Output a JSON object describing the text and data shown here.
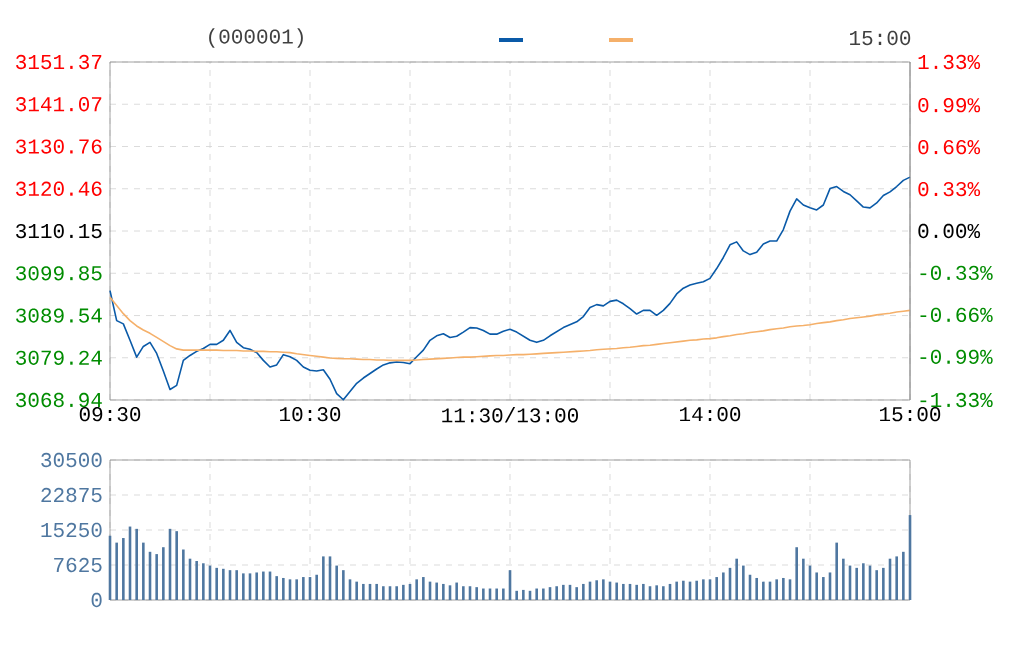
{
  "chart_data": [
    {
      "type": "line",
      "annotations": [
        "(000001)",
        "15:00"
      ],
      "categories": [
        "09:30",
        null,
        null,
        null,
        null,
        null,
        null,
        null,
        null,
        null,
        null,
        null,
        null,
        null,
        null,
        null,
        null,
        null,
        null,
        null,
        null,
        null,
        null,
        null,
        null,
        null,
        null,
        null,
        null,
        null,
        "10:30",
        null,
        null,
        null,
        null,
        null,
        null,
        null,
        null,
        null,
        null,
        null,
        null,
        null,
        null,
        null,
        null,
        null,
        null,
        null,
        null,
        null,
        null,
        null,
        null,
        null,
        null,
        null,
        null,
        null,
        "11:30/13:00",
        null,
        null,
        null,
        null,
        null,
        null,
        null,
        null,
        null,
        null,
        null,
        null,
        null,
        null,
        null,
        null,
        null,
        null,
        null,
        null,
        null,
        null,
        null,
        null,
        null,
        null,
        null,
        null,
        null,
        "14:00",
        null,
        null,
        null,
        null,
        null,
        null,
        null,
        null,
        null,
        null,
        null,
        null,
        null,
        null,
        null,
        null,
        null,
        null,
        null,
        null,
        null,
        null,
        null,
        null,
        null,
        null,
        null,
        null,
        null,
        "15:00"
      ],
      "ylim": [
        3068.94,
        3151.37
      ],
      "yticks": [
        3068.94,
        3079.24,
        3089.54,
        3099.85,
        3110.15,
        3120.46,
        3130.76,
        3141.07,
        3151.37
      ],
      "y2lim": [
        -1.33,
        1.33
      ],
      "y2ticks": [
        {
          "value": -1.33,
          "label": "-1.33%"
        },
        {
          "value": -0.99,
          "label": "-0.99%"
        },
        {
          "value": -0.66,
          "label": "-0.66%"
        },
        {
          "value": -0.33,
          "label": "-0.33%"
        },
        {
          "value": 0,
          "label": "0.00%"
        },
        {
          "value": 0.33,
          "label": "0.33%"
        },
        {
          "value": 0.66,
          "label": "0.66%"
        },
        {
          "value": 0.99,
          "label": "0.99%"
        },
        {
          "value": 1.33,
          "label": "1.33%"
        }
      ],
      "grid": true,
      "series": [
        {
          "color": "#0a5aa8",
          "values": [
            3095.6,
            3088.3,
            3087.5,
            3083.5,
            3079.4,
            3082.0,
            3083.0,
            3080.3,
            3076.0,
            3071.5,
            3072.5,
            3078.6,
            3079.8,
            3080.8,
            3081.5,
            3082.5,
            3082.5,
            3083.5,
            3085.9,
            3083.0,
            3081.7,
            3081.3,
            3080.5,
            3078.6,
            3077.0,
            3077.5,
            3080.0,
            3079.5,
            3078.6,
            3077.0,
            3076.2,
            3076.0,
            3076.3,
            3074.0,
            3070.5,
            3069.0,
            3071.0,
            3073.0,
            3074.3,
            3075.4,
            3076.5,
            3077.5,
            3078.0,
            3078.2,
            3078.1,
            3077.8,
            3079.5,
            3081.1,
            3083.5,
            3084.6,
            3085.1,
            3084.2,
            3084.5,
            3085.5,
            3086.6,
            3086.5,
            3085.9,
            3085.0,
            3085.0,
            3085.7,
            3086.2,
            3085.5,
            3084.5,
            3083.5,
            3083.0,
            3083.5,
            3084.6,
            3085.6,
            3086.6,
            3087.3,
            3088.0,
            3089.3,
            3091.5,
            3092.2,
            3091.9,
            3093.0,
            3093.3,
            3092.4,
            3091.2,
            3089.9,
            3090.8,
            3090.8,
            3089.6,
            3090.8,
            3092.5,
            3094.8,
            3096.2,
            3097.0,
            3097.4,
            3097.8,
            3098.6,
            3101.0,
            3103.7,
            3106.8,
            3107.5,
            3105.3,
            3104.4,
            3105.0,
            3107.0,
            3107.7,
            3107.7,
            3110.5,
            3115.0,
            3118.0,
            3116.5,
            3115.8,
            3115.3,
            3116.5,
            3120.5,
            3121.0,
            3119.8,
            3119.0,
            3117.5,
            3116.0,
            3115.8,
            3117.0,
            3118.8,
            3119.7,
            3121.0,
            3122.5,
            3123.3
          ]
        },
        {
          "color": "#f5b06a",
          "values": [
            3094.0,
            3092.0,
            3090.0,
            3088.3,
            3087.0,
            3086.0,
            3085.2,
            3084.2,
            3083.2,
            3082.2,
            3081.4,
            3081.1,
            3081.1,
            3081.1,
            3081.1,
            3081.1,
            3081.1,
            3081.0,
            3081.0,
            3081.0,
            3080.9,
            3080.9,
            3080.8,
            3080.8,
            3080.7,
            3080.7,
            3080.6,
            3080.5,
            3080.2,
            3080.0,
            3079.8,
            3079.6,
            3079.4,
            3079.2,
            3079.1,
            3079.0,
            3079.0,
            3078.9,
            3078.8,
            3078.8,
            3078.7,
            3078.7,
            3078.6,
            3078.6,
            3078.6,
            3078.6,
            3078.7,
            3078.8,
            3078.9,
            3079.0,
            3079.1,
            3079.2,
            3079.3,
            3079.4,
            3079.4,
            3079.5,
            3079.6,
            3079.7,
            3079.8,
            3079.8,
            3079.9,
            3080.0,
            3080.0,
            3080.1,
            3080.2,
            3080.3,
            3080.4,
            3080.5,
            3080.6,
            3080.7,
            3080.8,
            3080.9,
            3081.0,
            3081.2,
            3081.3,
            3081.4,
            3081.5,
            3081.7,
            3081.8,
            3082.0,
            3082.2,
            3082.3,
            3082.5,
            3082.7,
            3082.9,
            3083.1,
            3083.3,
            3083.5,
            3083.6,
            3083.8,
            3083.9,
            3084.1,
            3084.4,
            3084.6,
            3084.9,
            3085.1,
            3085.4,
            3085.6,
            3085.8,
            3086.1,
            3086.3,
            3086.5,
            3086.8,
            3087.0,
            3087.1,
            3087.3,
            3087.6,
            3087.8,
            3088.0,
            3088.3,
            3088.5,
            3088.8,
            3089.0,
            3089.2,
            3089.4,
            3089.7,
            3089.9,
            3090.1,
            3090.4,
            3090.6,
            3090.8
          ]
        }
      ]
    },
    {
      "type": "bar",
      "tick_labels": "y",
      "grid": true,
      "color": "#4f77a0",
      "categories": [
        null,
        null,
        null,
        null,
        null,
        null,
        null,
        null,
        null,
        null,
        null,
        null,
        null,
        null,
        null,
        null,
        null,
        null,
        null,
        null,
        null,
        null,
        null,
        null,
        null,
        null,
        null,
        null,
        null,
        null,
        null,
        null,
        null,
        null,
        null,
        null,
        null,
        null,
        null,
        null,
        null,
        null,
        null,
        null,
        null,
        null,
        null,
        null,
        null,
        null,
        null,
        null,
        null,
        null,
        null,
        null,
        null,
        null,
        null,
        null,
        null,
        null,
        null,
        null,
        null,
        null,
        null,
        null,
        null,
        null,
        null,
        null,
        null,
        null,
        null,
        null,
        null,
        null,
        null,
        null,
        null,
        null,
        null,
        null,
        null,
        null,
        null,
        null,
        null,
        null,
        null,
        null,
        null,
        null,
        null,
        null,
        null,
        null,
        null,
        null,
        null,
        null,
        null,
        null,
        null,
        null,
        null,
        null,
        null,
        null,
        null,
        null,
        null,
        null,
        null,
        null,
        null,
        null,
        null,
        null,
        null
      ],
      "ylim": [
        0,
        30500
      ],
      "yticks": [
        0,
        7625,
        15250,
        22875,
        30500
      ],
      "values": [
        14000,
        12500,
        13500,
        16000,
        15500,
        12500,
        10500,
        10000,
        11500,
        15500,
        15000,
        11000,
        9000,
        8500,
        8000,
        7500,
        7000,
        6800,
        6500,
        6500,
        5800,
        5800,
        6000,
        6200,
        6200,
        5200,
        4800,
        4500,
        4500,
        5000,
        5000,
        5500,
        9500,
        9500,
        7500,
        6500,
        4500,
        4000,
        3500,
        3500,
        3500,
        3000,
        3000,
        3000,
        3300,
        3500,
        4500,
        5000,
        4000,
        3800,
        3500,
        3200,
        3800,
        3000,
        3000,
        2800,
        2500,
        2500,
        2500,
        2500,
        6500,
        2000,
        2200,
        2000,
        2500,
        2500,
        2800,
        3000,
        3300,
        3300,
        2800,
        3500,
        4000,
        4300,
        4500,
        4000,
        3800,
        3500,
        3500,
        3300,
        3500,
        3000,
        3200,
        3000,
        3500,
        4000,
        4200,
        4000,
        4200,
        4500,
        4500,
        5000,
        6000,
        7000,
        9000,
        7500,
        5500,
        4800,
        4000,
        4000,
        4500,
        4800,
        4500,
        11500,
        9000,
        7500,
        6000,
        5000,
        6000,
        12500,
        9000,
        7500,
        7000,
        8000,
        7500,
        6500,
        7000,
        9000,
        9500,
        10500,
        18500
      ]
    }
  ]
}
